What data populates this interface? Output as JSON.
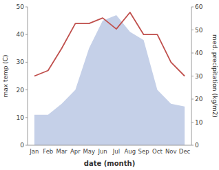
{
  "chart_data": {
    "type": "line",
    "categories": [
      "Jan",
      "Feb",
      "Mar",
      "Apr",
      "May",
      "Jun",
      "Jul",
      "Aug",
      "Sep",
      "Oct",
      "Nov",
      "Dec"
    ],
    "series": [
      {
        "type": "area",
        "color": "#c5d0e8",
        "values": [
          11,
          11,
          15,
          20,
          35,
          45,
          47,
          41,
          38,
          20,
          15,
          14
        ]
      },
      {
        "type": "line",
        "color": "#c0504d",
        "values": [
          25,
          27,
          35,
          44,
          44,
          46,
          42,
          48,
          40,
          40,
          30,
          25
        ]
      }
    ],
    "xlabel": "date (month)",
    "ylabel": "max temp (C)",
    "y2label": "med. precipitation (kg/m2)",
    "ylim": [
      0,
      50
    ],
    "yticks": [
      0,
      10,
      20,
      30,
      40,
      50
    ],
    "y2lim": [
      0,
      60
    ],
    "y2ticks": [
      0,
      10,
      20,
      30,
      40,
      50,
      60
    ],
    "grid": false
  }
}
